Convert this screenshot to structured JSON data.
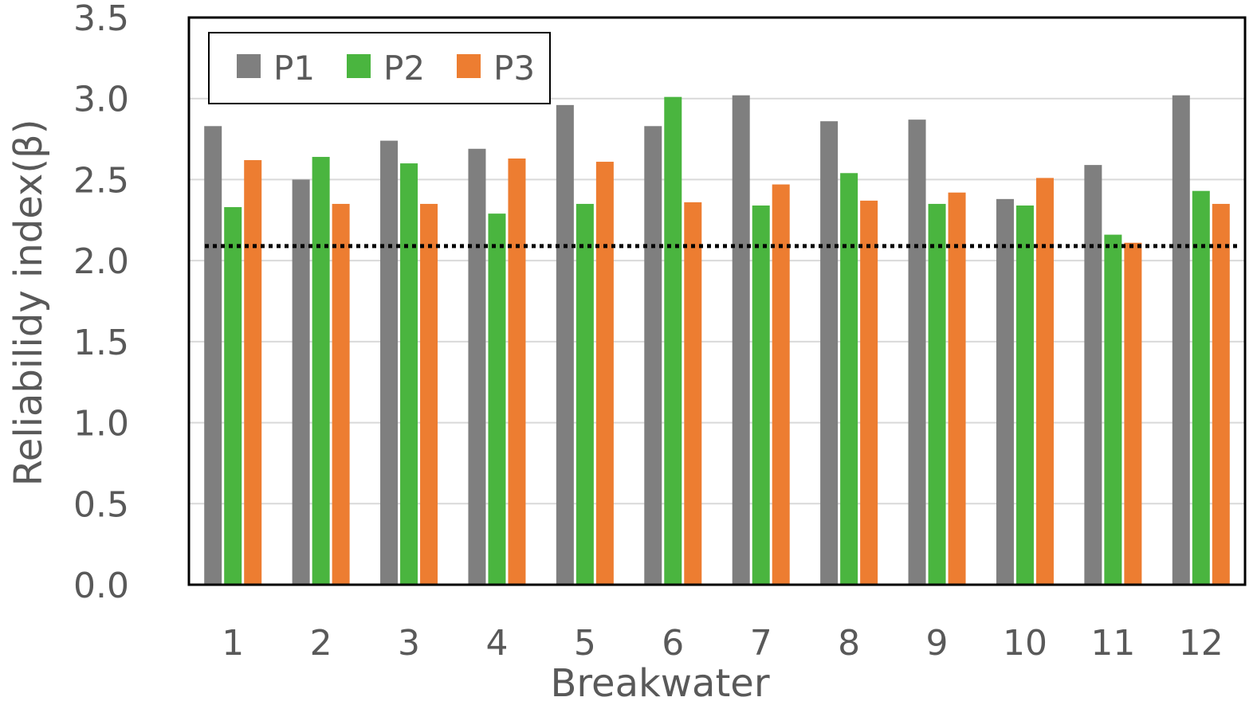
{
  "chart_data": {
    "type": "bar",
    "xlabel": "Breakwater",
    "ylabel": "Reliabilidy index(β)",
    "ylim": [
      0,
      3.5
    ],
    "yticks": [
      "0.0",
      "0.5",
      "1.0",
      "1.5",
      "2.0",
      "2.5",
      "3.0",
      "3.5"
    ],
    "grid": "horizontal",
    "legend_position": "top-left",
    "categories": [
      "1",
      "2",
      "3",
      "4",
      "5",
      "6",
      "7",
      "8",
      "9",
      "10",
      "11",
      "12"
    ],
    "series": [
      {
        "name": "P1",
        "color": "#7f7f7f",
        "values": [
          2.83,
          2.5,
          2.74,
          2.69,
          2.96,
          2.83,
          3.02,
          2.86,
          2.87,
          2.38,
          2.59,
          3.02
        ]
      },
      {
        "name": "P2",
        "color": "#4ab53f",
        "values": [
          2.33,
          2.64,
          2.6,
          2.29,
          2.35,
          3.01,
          2.34,
          2.54,
          2.35,
          2.34,
          2.16,
          2.43
        ]
      },
      {
        "name": "P3",
        "color": "#ed7d31",
        "values": [
          2.62,
          2.35,
          2.35,
          2.63,
          2.61,
          2.36,
          2.47,
          2.37,
          2.42,
          2.51,
          2.11,
          2.35
        ]
      }
    ],
    "reference_line": {
      "value": 2.09,
      "style": "dotted",
      "color": "#000000"
    }
  }
}
